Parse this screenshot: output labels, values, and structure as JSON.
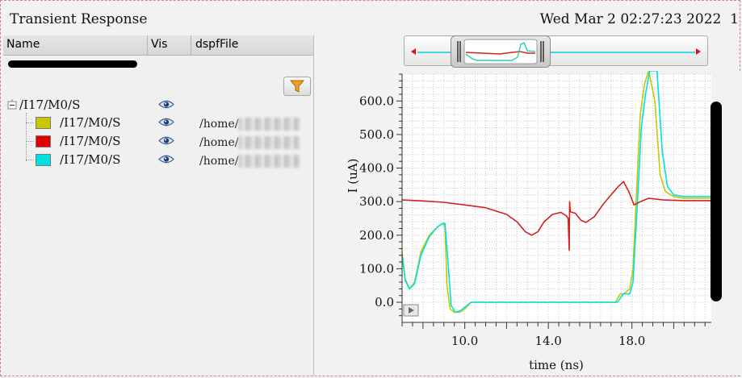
{
  "window": {
    "title": "Transient Response",
    "datetime": "Wed Mar 2 02:27:23 2022",
    "page_number": "1"
  },
  "table": {
    "headers": {
      "name": "Name",
      "vis": "Vis",
      "file": "dspfFile"
    },
    "root": {
      "label": "/I17/M0/S"
    },
    "signals": [
      {
        "label": "/I17/M0/S",
        "color": "#c8c800",
        "path_prefix": "/home/"
      },
      {
        "label": "/I17/M0/S",
        "color": "#e00000",
        "path_prefix": "/home/"
      },
      {
        "label": "/I17/M0/S",
        "color": "#00e0e0",
        "path_prefix": "/home/"
      }
    ],
    "icons": {
      "filter": "filter-icon",
      "visible": "eye-icon",
      "tree_toggle": "tree-collapse-icon"
    }
  },
  "chart_data": {
    "type": "line",
    "xlabel": "time (ns)",
    "ylabel": "I (uA)",
    "xlim": [
      7.0,
      21.8
    ],
    "ylim": [
      -60,
      680
    ],
    "x_ticks": [
      10.0,
      14.0,
      18.0
    ],
    "y_ticks": [
      0.0,
      100.0,
      200.0,
      300.0,
      400.0,
      500.0,
      600.0
    ],
    "x_tick_labels": [
      "10.0",
      "14.0",
      "18.0"
    ],
    "y_tick_labels": [
      "0.0",
      "100.0",
      "200.0",
      "300.0",
      "400.0",
      "500.0",
      "600.0"
    ],
    "grid": true,
    "series": [
      {
        "color": "#c8c800",
        "points": [
          [
            7.0,
            150
          ],
          [
            7.15,
            70
          ],
          [
            7.35,
            40
          ],
          [
            7.6,
            60
          ],
          [
            7.9,
            150
          ],
          [
            8.3,
            200
          ],
          [
            8.7,
            225
          ],
          [
            8.95,
            235
          ],
          [
            9.05,
            225
          ],
          [
            9.15,
            50
          ],
          [
            9.3,
            -20
          ],
          [
            9.5,
            -30
          ],
          [
            9.75,
            -30
          ],
          [
            10.0,
            -20
          ],
          [
            10.3,
            0
          ],
          [
            11.0,
            0
          ],
          [
            13.0,
            0
          ],
          [
            15.0,
            0
          ],
          [
            17.2,
            0
          ],
          [
            17.45,
            25
          ],
          [
            17.6,
            25
          ],
          [
            17.9,
            40
          ],
          [
            18.05,
            100
          ],
          [
            18.2,
            300
          ],
          [
            18.4,
            560
          ],
          [
            18.6,
            650
          ],
          [
            18.8,
            690
          ],
          [
            19.1,
            600
          ],
          [
            19.35,
            380
          ],
          [
            19.6,
            330
          ],
          [
            20.0,
            315
          ],
          [
            20.5,
            310
          ],
          [
            21.0,
            310
          ],
          [
            21.8,
            310
          ]
        ]
      },
      {
        "color": "#00e0e0",
        "points": [
          [
            7.0,
            140
          ],
          [
            7.15,
            65
          ],
          [
            7.35,
            40
          ],
          [
            7.6,
            55
          ],
          [
            7.9,
            140
          ],
          [
            8.3,
            195
          ],
          [
            8.7,
            225
          ],
          [
            8.95,
            235
          ],
          [
            9.05,
            235
          ],
          [
            9.2,
            120
          ],
          [
            9.35,
            -10
          ],
          [
            9.55,
            -30
          ],
          [
            9.8,
            -25
          ],
          [
            10.0,
            -15
          ],
          [
            10.3,
            0
          ],
          [
            11.0,
            0
          ],
          [
            13.0,
            0
          ],
          [
            15.0,
            0
          ],
          [
            17.3,
            0
          ],
          [
            17.6,
            25
          ],
          [
            17.9,
            25
          ],
          [
            18.05,
            60
          ],
          [
            18.25,
            280
          ],
          [
            18.45,
            520
          ],
          [
            18.65,
            620
          ],
          [
            18.85,
            690
          ],
          [
            19.2,
            690
          ],
          [
            19.45,
            450
          ],
          [
            19.7,
            345
          ],
          [
            20.0,
            320
          ],
          [
            20.5,
            315
          ],
          [
            21.0,
            315
          ],
          [
            21.8,
            315
          ]
        ]
      },
      {
        "color": "#d42020",
        "points": [
          [
            7.0,
            305
          ],
          [
            8.0,
            302
          ],
          [
            9.0,
            298
          ],
          [
            10.0,
            290
          ],
          [
            11.0,
            282
          ],
          [
            12.0,
            262
          ],
          [
            12.5,
            240
          ],
          [
            12.9,
            210
          ],
          [
            13.2,
            200
          ],
          [
            13.5,
            210
          ],
          [
            13.8,
            240
          ],
          [
            14.2,
            262
          ],
          [
            14.6,
            268
          ],
          [
            14.85,
            258
          ],
          [
            14.95,
            250
          ],
          [
            15.0,
            155
          ],
          [
            15.02,
            300
          ],
          [
            15.05,
            270
          ],
          [
            15.3,
            265
          ],
          [
            15.55,
            245
          ],
          [
            15.8,
            238
          ],
          [
            16.2,
            255
          ],
          [
            16.6,
            290
          ],
          [
            17.0,
            320
          ],
          [
            17.35,
            345
          ],
          [
            17.6,
            360
          ],
          [
            17.85,
            330
          ],
          [
            18.1,
            290
          ],
          [
            18.4,
            300
          ],
          [
            18.8,
            310
          ],
          [
            19.5,
            305
          ],
          [
            20.5,
            303
          ],
          [
            21.8,
            303
          ]
        ]
      }
    ]
  }
}
